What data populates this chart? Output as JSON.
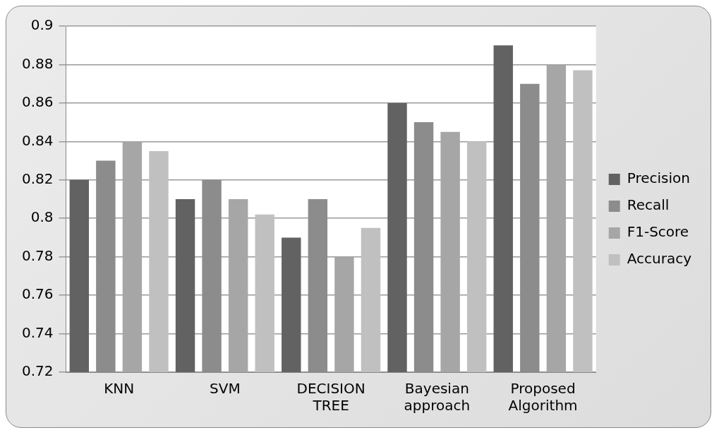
{
  "chart_data": {
    "type": "bar",
    "categories": [
      "KNN",
      "SVM",
      "DECISION TREE",
      "Bayesian approach",
      "Proposed Algorithm"
    ],
    "series": [
      {
        "name": "Precision",
        "color": "#626262",
        "values": [
          0.82,
          0.81,
          0.79,
          0.86,
          0.89
        ]
      },
      {
        "name": "Recall",
        "color": "#8c8c8c",
        "values": [
          0.83,
          0.82,
          0.81,
          0.85,
          0.87
        ]
      },
      {
        "name": "F1-Score",
        "color": "#a6a6a6",
        "values": [
          0.84,
          0.81,
          0.78,
          0.845,
          0.88
        ]
      },
      {
        "name": "Accuracy",
        "color": "#c0c0c0",
        "values": [
          0.835,
          0.802,
          0.795,
          0.84,
          0.877
        ]
      }
    ],
    "ylim": [
      0.72,
      0.9
    ],
    "yticks": [
      0.72,
      0.74,
      0.76,
      0.78,
      0.8,
      0.82,
      0.84,
      0.86,
      0.88,
      0.9
    ],
    "grid": "y",
    "legend": "right"
  }
}
